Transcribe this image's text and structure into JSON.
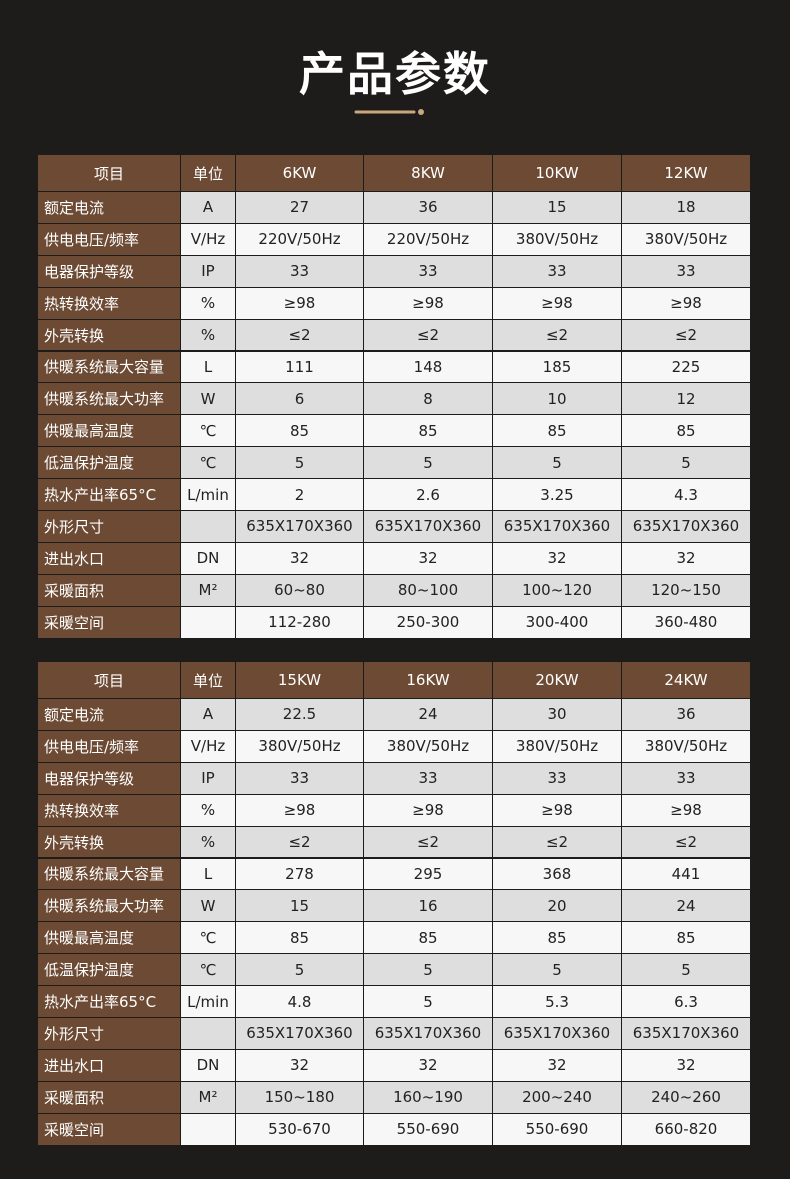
{
  "title": "产品参数",
  "tables": [
    {
      "header": [
        "项目",
        "单位",
        "6KW",
        "8KW",
        "10KW",
        "12KW"
      ],
      "rows": [
        [
          "额定电流",
          "A",
          "27",
          "36",
          "15",
          "18"
        ],
        [
          "供电电压/频率",
          "V/Hz",
          "220V/50Hz",
          "220V/50Hz",
          "380V/50Hz",
          "380V/50Hz"
        ],
        [
          "电器保护等级",
          "IP",
          "33",
          "33",
          "33",
          "33"
        ],
        [
          "热转换效率",
          "%",
          "≥98",
          "≥98",
          "≥98",
          "≥98"
        ],
        [
          "外壳转换",
          "%",
          "≤2",
          "≤2",
          "≤2",
          "≤2"
        ],
        [
          "供暖系统最大容量",
          "L",
          "111",
          "148",
          "185",
          "225"
        ],
        [
          "供暖系统最大功率",
          "W",
          "6",
          "8",
          "10",
          "12"
        ],
        [
          "供暖最高温度",
          "℃",
          "85",
          "85",
          "85",
          "85"
        ],
        [
          "低温保护温度",
          "℃",
          "5",
          "5",
          "5",
          "5"
        ],
        [
          "热水产出率65°C",
          "L/min",
          "2",
          "2.6",
          "3.25",
          "4.3"
        ],
        [
          "外形尺寸",
          null,
          "635X170X360",
          "635X170X360",
          "635X170X360",
          "635X170X360"
        ],
        [
          "进出水口",
          "DN",
          "32",
          "32",
          "32",
          "32"
        ],
        [
          "采暖面积",
          "M²",
          "60~80",
          "80~100",
          "100~120",
          "120~150"
        ],
        [
          "采暖空间",
          null,
          "112-280",
          "250-300",
          "300-400",
          "360-480"
        ]
      ]
    },
    {
      "header": [
        "项目",
        "单位",
        "15KW",
        "16KW",
        "20KW",
        "24KW"
      ],
      "rows": [
        [
          "额定电流",
          "A",
          "22.5",
          "24",
          "30",
          "36"
        ],
        [
          "供电电压/频率",
          "V/Hz",
          "380V/50Hz",
          "380V/50Hz",
          "380V/50Hz",
          "380V/50Hz"
        ],
        [
          "电器保护等级",
          "IP",
          "33",
          "33",
          "33",
          "33"
        ],
        [
          "热转换效率",
          "%",
          "≥98",
          "≥98",
          "≥98",
          "≥98"
        ],
        [
          "外壳转换",
          "%",
          "≤2",
          "≤2",
          "≤2",
          "≤2"
        ],
        [
          "供暖系统最大容量",
          "L",
          "278",
          "295",
          "368",
          "441"
        ],
        [
          "供暖系统最大功率",
          "W",
          "15",
          "16",
          "20",
          "24"
        ],
        [
          "供暖最高温度",
          "℃",
          "85",
          "85",
          "85",
          "85"
        ],
        [
          "低温保护温度",
          "℃",
          "5",
          "5",
          "5",
          "5"
        ],
        [
          "热水产出率65°C",
          "L/min",
          "4.8",
          "5",
          "5.3",
          "6.3"
        ],
        [
          "外形尺寸",
          null,
          "635X170X360",
          "635X170X360",
          "635X170X360",
          "635X170X360"
        ],
        [
          "进出水口",
          "DN",
          "32",
          "32",
          "32",
          "32"
        ],
        [
          "采暖面积",
          "M²",
          "150~180",
          "160~190",
          "200~240",
          "240~260"
        ],
        [
          "采暖空间",
          null,
          "530-670",
          "550-690",
          "550-690",
          "660-820"
        ]
      ]
    }
  ]
}
